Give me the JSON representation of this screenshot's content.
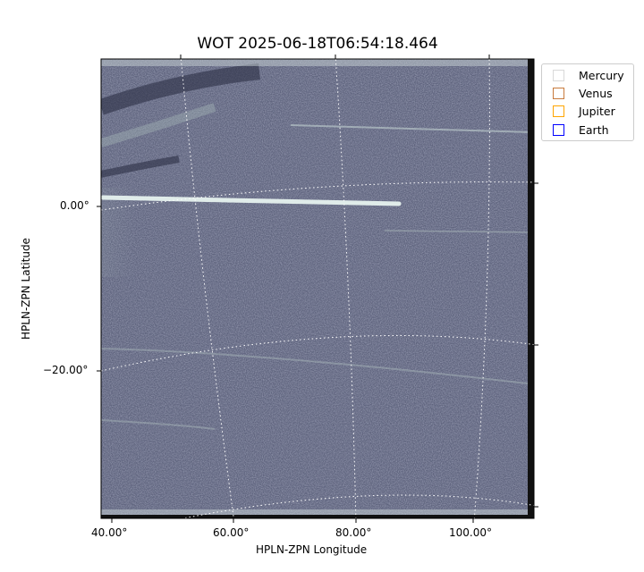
{
  "chart_data": {
    "type": "image",
    "title": "WOT 2025-06-18T06:54:18.464",
    "xlabel": "HPLN-ZPN Longitude",
    "ylabel": "HPLN-ZPN Latitude",
    "x_ticks": [
      "40.00°",
      "60.00°",
      "80.00°",
      "100.00°"
    ],
    "y_ticks": [
      "0.00°",
      "−20.00°"
    ],
    "colormap": "bone",
    "grid": true,
    "legend_placement": "outside-top-right",
    "legend": [
      {
        "name": "Mercury",
        "color": "#d9d9d9"
      },
      {
        "name": "Venus",
        "color": "#c87a3c"
      },
      {
        "name": "Jupiter",
        "color": "#ffa500"
      },
      {
        "name": "Earth",
        "color": "#0000ff"
      }
    ]
  }
}
